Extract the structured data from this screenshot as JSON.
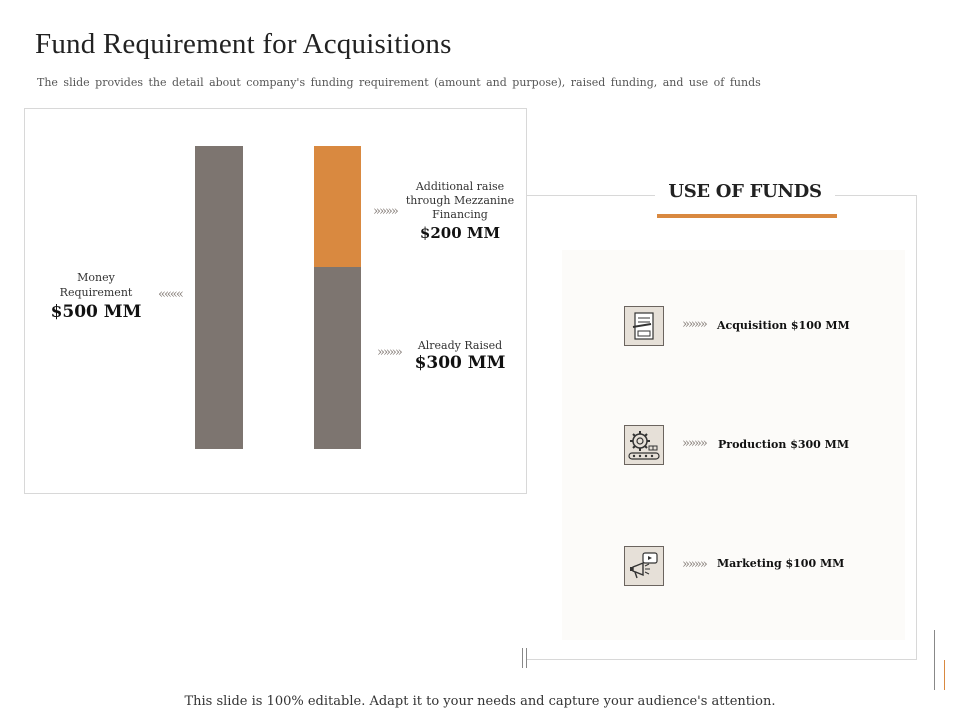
{
  "slide": {
    "title": "Fund Requirement for Acquisitions",
    "subtitle": "The slide provides the detail about company's funding requirement (amount and purpose), raised funding, and use of funds",
    "footer": "This slide is 100% editable. Adapt it to your needs and capture your audience's attention."
  },
  "left_chart": {
    "money_requirement_label": "Money Requirement",
    "money_requirement_amount": "$500 MM",
    "mezzanine_label": "Additional raise through Mezzanine Financing",
    "mezzanine_amount": "$200 MM",
    "raised_label": "Already Raised",
    "raised_amount": "$300 MM",
    "chevrons_left": "««««",
    "chevrons_right": "»»»»",
    "colors": {
      "total": "#7d7570",
      "mezzanine": "#d98940",
      "raised": "#7d7570"
    }
  },
  "use_of_funds": {
    "title": "USE OF FUNDS",
    "items": [
      {
        "icon": "document-pen-icon",
        "label": "Acquisition $100 MM"
      },
      {
        "icon": "gear-conveyor-icon",
        "label": "Production $300 MM"
      },
      {
        "icon": "megaphone-icon",
        "label": "Marketing $100 MM"
      }
    ],
    "chevrons": "»»»»",
    "accent": "#d98940"
  }
}
